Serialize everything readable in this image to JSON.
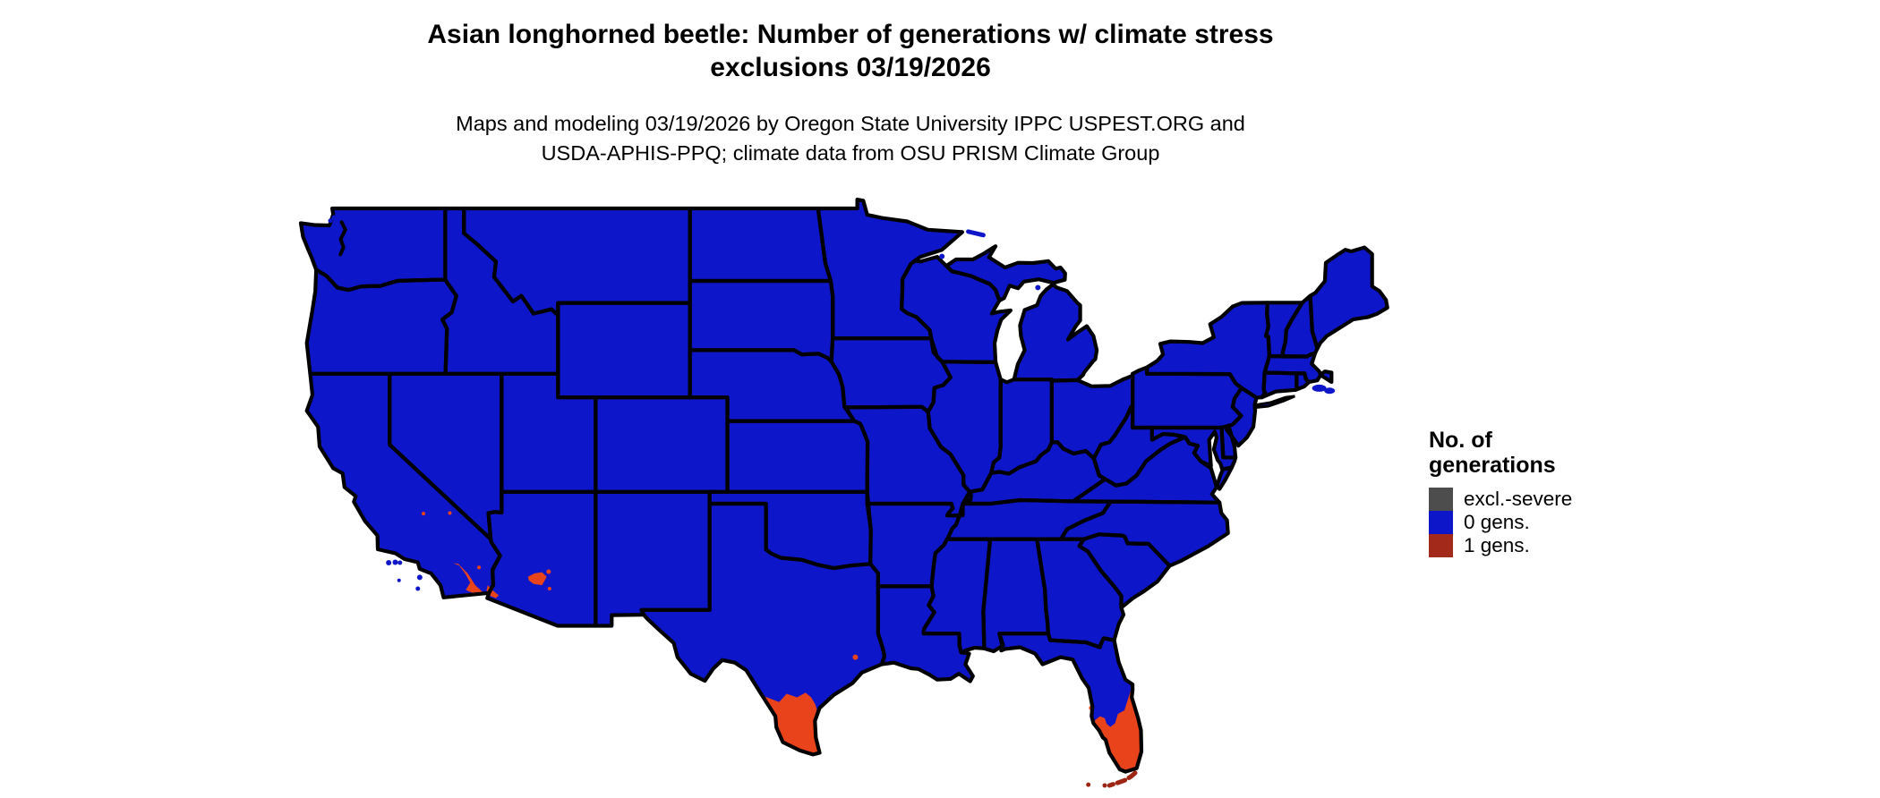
{
  "title": {
    "line1": "Asian longhorned beetle: Number of generations w/ climate stress",
    "line2": "exclusions 03/19/2026"
  },
  "subtitle": {
    "line1": "Maps and modeling 03/19/2026 by Oregon State University IPPC USPEST.ORG and",
    "line2": "USDA-APHIS-PPQ; climate data from OSU PRISM Climate Group"
  },
  "legend": {
    "title_line1": "No. of",
    "title_line2": "generations",
    "items": [
      {
        "label": "excl.-severe",
        "color": "#4d4d4d"
      },
      {
        "label": "0 gens.",
        "color": "#0d16c9"
      },
      {
        "label": "1 gens.",
        "color": "#a3291b"
      }
    ]
  },
  "map": {
    "region": "Contiguous United States",
    "background": "#ffffff",
    "state_fill": "#0d16c9",
    "one_gen_fill": "#e8431a",
    "keys_fill": "#9e2413",
    "border_color": "#000000",
    "regions_with_one_generation": [
      "southern tip of Texas (Rio Grande Valley)",
      "southern Florida peninsula",
      "Florida Keys (dark red)",
      "Imperial / Coachella valleys, southeastern California",
      "Phoenix and Yuma areas, Arizona",
      "small desert spots in eastern California and near Houston / Tampa"
    ]
  }
}
